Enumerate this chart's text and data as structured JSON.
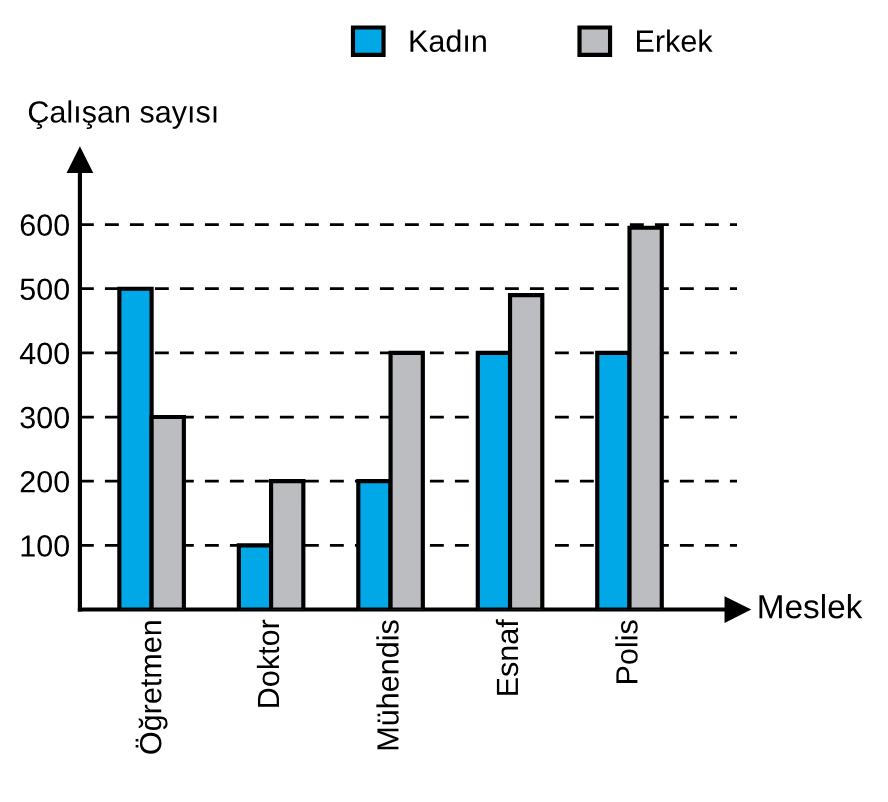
{
  "chart_data": {
    "type": "bar",
    "ylabel": "Çalışan sayısı",
    "xlabel": "Meslek",
    "categories": [
      "Öğretmen",
      "Doktor",
      "Mühendis",
      "Esnaf",
      "Polis"
    ],
    "series": [
      {
        "name": "Kadın",
        "color": "#00a8e8",
        "values": [
          500,
          100,
          200,
          400,
          400
        ]
      },
      {
        "name": "Erkek",
        "color": "#bcbdc0",
        "values": [
          300,
          200,
          400,
          490,
          595
        ]
      }
    ],
    "ylim": [
      0,
      700
    ],
    "yticks": [
      100,
      200,
      300,
      400,
      500,
      600
    ],
    "grid": "y",
    "line_style": "dashed",
    "legend": "top"
  }
}
